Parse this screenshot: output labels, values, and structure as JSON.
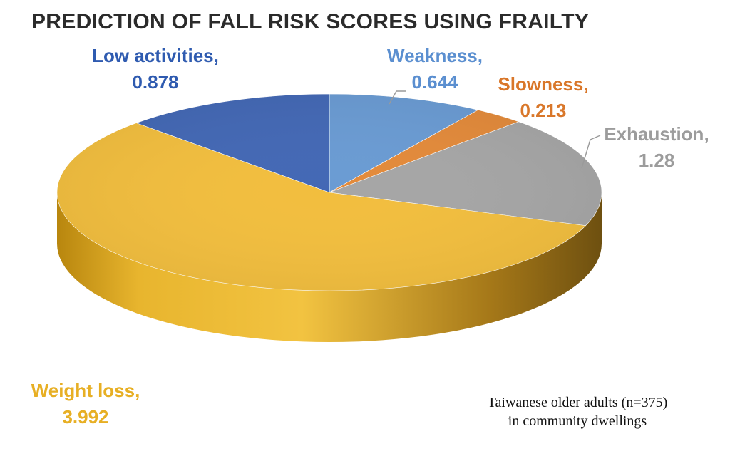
{
  "chart_data": {
    "type": "pie",
    "title": "PREDICTION OF FALL RISK SCORES USING FRAILTY",
    "slices": [
      {
        "name": "Weakness",
        "label": "Weakness,",
        "value_text": "0.644",
        "value": 0.644,
        "color": "#6A9BD3"
      },
      {
        "name": "Slowness",
        "label": "Slowness,",
        "value_text": "0.213",
        "value": 0.213,
        "color": "#E38A3A"
      },
      {
        "name": "Exhaustion",
        "label": "Exhaustion,",
        "value_text": "1.28",
        "value": 1.28,
        "color": "#A6A6A6"
      },
      {
        "name": "Weight loss",
        "label": "Weight loss,",
        "value_text": "3.992",
        "value": 3.992,
        "color": "#F2BE3E"
      },
      {
        "name": "Low activities",
        "label": "Low activities,",
        "value_text": "0.878",
        "value": 0.878,
        "color": "#4368B5"
      }
    ],
    "style_3d": true,
    "legend": "none"
  },
  "annotation": {
    "line1": "Taiwanese older adults (n=375)",
    "line2": "in community dwellings"
  }
}
